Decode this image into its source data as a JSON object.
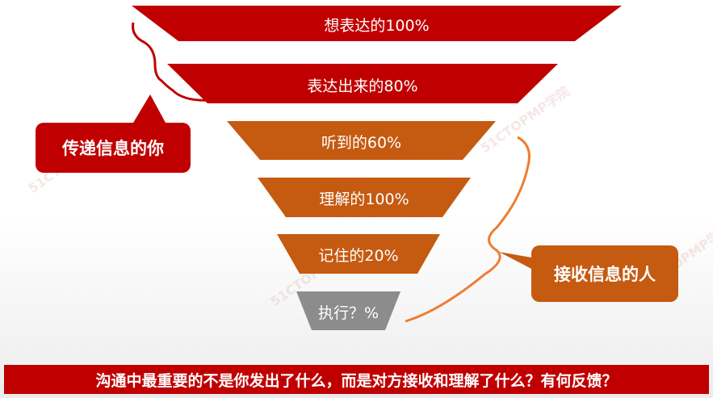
{
  "levels": [
    {
      "label": "想表达的100%",
      "color": "#c00000"
    },
    {
      "label": "表达出来的80%",
      "color": "#c00000"
    },
    {
      "label": "听到的60%",
      "color": "#c55a11"
    },
    {
      "label": "理解的100%",
      "color": "#c55a11"
    },
    {
      "label": "记住的20%",
      "color": "#c55a11"
    },
    {
      "label": "执行？%",
      "color": "#8c8c8c"
    }
  ],
  "callouts": {
    "sender": {
      "label": "传递信息的你",
      "color": "#c00000"
    },
    "receiver": {
      "label": "接收信息的人",
      "color": "#c55a11"
    }
  },
  "footer": {
    "text": "沟通中最重要的不是你发出了什么，而是对方接收和理解了什么？有何反馈？",
    "color": "#c00000"
  },
  "watermark": "51CTOPMP学院"
}
